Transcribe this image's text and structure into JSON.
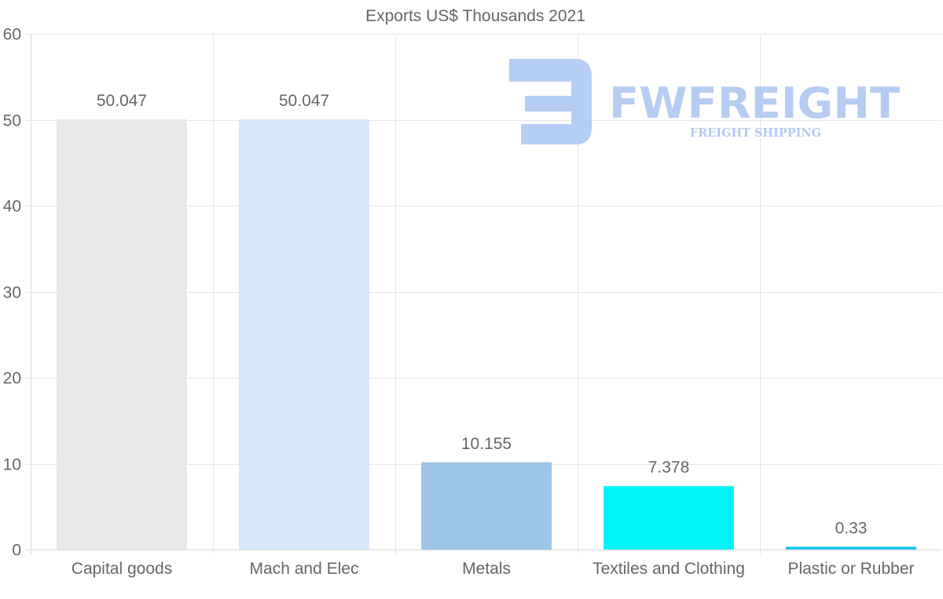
{
  "chart_data": {
    "type": "bar",
    "title": "Exports US$ Thousands 2021",
    "categories": [
      "Capital goods",
      "Mach and Elec",
      "Metals",
      "Textiles and Clothing",
      "Plastic or Rubber"
    ],
    "values": [
      50.047,
      50.047,
      10.155,
      7.378,
      0.33
    ],
    "value_labels": [
      "50.047",
      "50.047",
      "10.155",
      "7.378",
      "0.33"
    ],
    "bar_colors": [
      "#e8e8e8",
      "#d6e7f9",
      "#9dc5e8",
      "#00f6f6",
      "#1ac8f0"
    ],
    "xlabel": "",
    "ylabel": "",
    "ylim": [
      0,
      60
    ],
    "yticks": [
      0,
      10,
      20,
      30,
      40,
      50,
      60
    ],
    "grid": true,
    "legend": "none"
  },
  "watermark": {
    "name": "FWFREIGHT",
    "tagline": "FREIGHT SHIPPING",
    "color": "#a9c4f2"
  }
}
